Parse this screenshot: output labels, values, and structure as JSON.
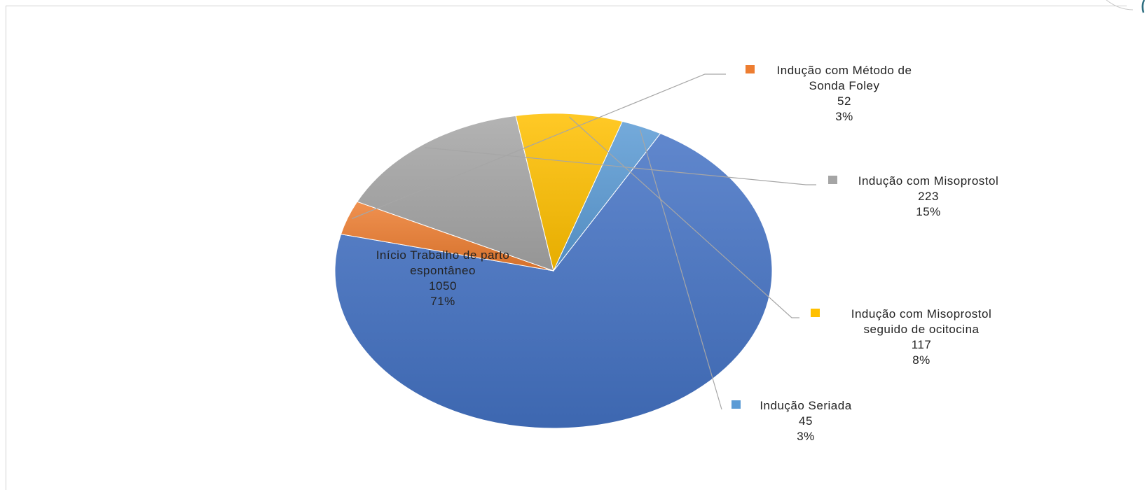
{
  "chart_data": {
    "type": "pie",
    "title": "",
    "slices": [
      {
        "label_lines": [
          "Início Trabalho de parto",
          "espontâneo"
        ],
        "value": 1050,
        "percent": "71%",
        "color": "#4472C4",
        "legend": false
      },
      {
        "label_lines": [
          "Indução com Método de",
          "Sonda Foley"
        ],
        "value": 52,
        "percent": "3%",
        "color": "#ED7D31",
        "legend": true
      },
      {
        "label_lines": [
          "Indução com Misoprostol"
        ],
        "value": 223,
        "percent": "15%",
        "color": "#A5A5A5",
        "legend": true
      },
      {
        "label_lines": [
          "Indução com Misoprostol",
          "seguido de ocitocina"
        ],
        "value": 117,
        "percent": "8%",
        "color": "#FFC000",
        "legend": true
      },
      {
        "label_lines": [
          "Indução Seriada"
        ],
        "value": 45,
        "percent": "3%",
        "color": "#5B9BD5",
        "legend": true
      }
    ]
  }
}
